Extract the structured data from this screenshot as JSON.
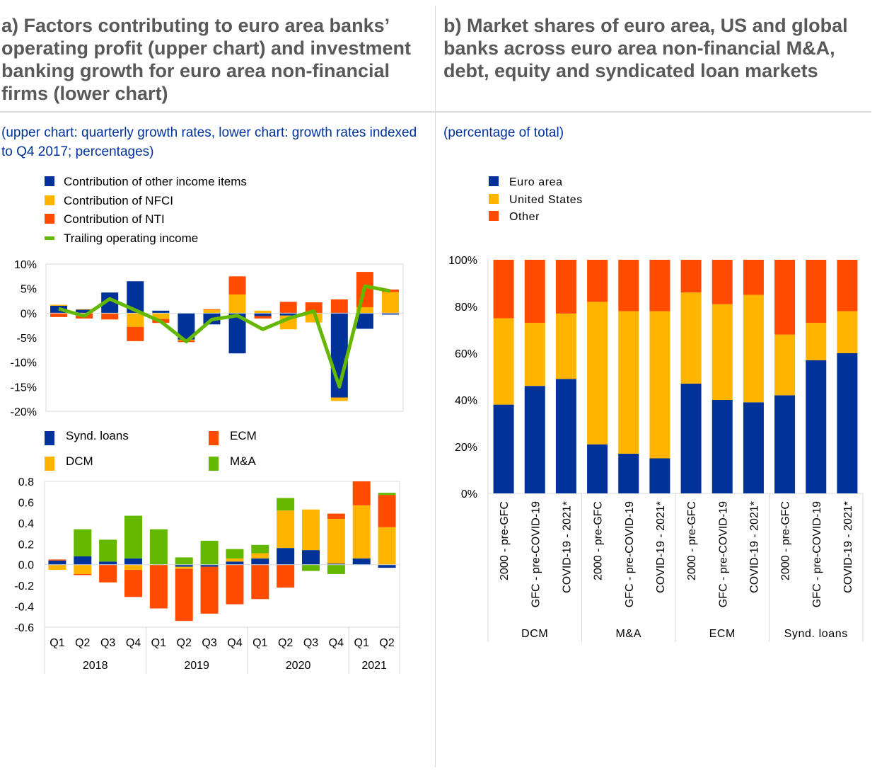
{
  "panel_a": {
    "title": "a) Factors contributing to euro area banks’ operating profit (upper chart) and investment banking growth for euro area non-financial firms (lower chart)",
    "subtitle": "(upper chart: quarterly growth rates, lower chart: growth rates indexed to Q4 2017; percentages)"
  },
  "panel_b": {
    "title": "b) Market shares of euro area, US and global banks across euro area non-financial M&A, debt, equity and syndicated loan markets",
    "subtitle": "(percentage of total)"
  },
  "colors": {
    "blue": "#003299",
    "yellow": "#FFB400",
    "orange": "#FF4B00",
    "green": "#65B800"
  },
  "chart_data": [
    {
      "type": "bar",
      "stacked": true,
      "categories": [
        "Q1",
        "Q2",
        "Q3",
        "Q4",
        "Q1",
        "Q2",
        "Q3",
        "Q4",
        "Q1",
        "Q2",
        "Q3",
        "Q4",
        "Q1",
        "Q2"
      ],
      "category_groups": [
        {
          "label": "2018",
          "span": 4
        },
        {
          "label": "2019",
          "span": 4
        },
        {
          "label": "2020",
          "span": 4
        },
        {
          "label": "2021",
          "span": 2
        }
      ],
      "ylim": [
        -20,
        10
      ],
      "yticks": [
        "10%",
        "5%",
        "0%",
        "-5%",
        "-10%",
        "-15%",
        "-20%"
      ],
      "series": [
        {
          "name": "Contribution of other income items",
          "kind": "bar",
          "values": [
            1.5,
            0.7,
            4.2,
            6.5,
            0.5,
            -5.4,
            -2.3,
            -8.2,
            -0.6,
            -0.5,
            -0.1,
            -17.2,
            -3.2,
            -0.3
          ]
        },
        {
          "name": "Contribution of NFCI",
          "kind": "bar",
          "values": [
            0.2,
            0.1,
            -0.1,
            -2.8,
            -1.2,
            -0.2,
            0.7,
            3.8,
            0.5,
            -2.8,
            -1.8,
            -0.7,
            1.2,
            4.3
          ]
        },
        {
          "name": "Contribution of NTI",
          "kind": "bar",
          "values": [
            -0.8,
            -1.1,
            -1.2,
            -2.9,
            -0.8,
            -0.3,
            0.1,
            3.7,
            -0.5,
            2.3,
            2.2,
            2.8,
            7.2,
            0.5
          ]
        },
        {
          "name": "Trailing operating income",
          "kind": "line",
          "values": [
            0.9,
            -0.6,
            2.9,
            0.6,
            -1.7,
            -5.8,
            -1.3,
            -0.5,
            -3.3,
            -1.1,
            0.4,
            -15.0,
            5.5,
            4.5
          ]
        }
      ]
    },
    {
      "type": "bar",
      "stacked": true,
      "categories": [
        "Q1",
        "Q2",
        "Q3",
        "Q4",
        "Q1",
        "Q2",
        "Q3",
        "Q4",
        "Q1",
        "Q2",
        "Q3",
        "Q4",
        "Q1",
        "Q2"
      ],
      "category_groups": [
        {
          "label": "2018",
          "span": 4
        },
        {
          "label": "2019",
          "span": 4
        },
        {
          "label": "2020",
          "span": 4
        },
        {
          "label": "2021",
          "span": 2
        }
      ],
      "ylim": [
        -0.6,
        0.8
      ],
      "yticks": [
        "0.8",
        "0.6",
        "0.4",
        "0.2",
        "0.0",
        "-0.2",
        "-0.4",
        "-0.6"
      ],
      "series": [
        {
          "name": "Synd. loans",
          "values": [
            0.04,
            0.08,
            0.03,
            0.06,
            0.0,
            -0.02,
            -0.02,
            0.03,
            0.06,
            0.16,
            0.14,
            0.01,
            0.06,
            -0.03
          ]
        },
        {
          "name": "DCM",
          "values": [
            -0.05,
            -0.09,
            0.0,
            -0.05,
            0.0,
            -0.02,
            0.0,
            0.03,
            0.05,
            0.36,
            0.39,
            0.43,
            0.51,
            0.36
          ]
        },
        {
          "name": "ECM",
          "values": [
            0.01,
            -0.01,
            -0.17,
            -0.26,
            -0.42,
            -0.5,
            -0.45,
            -0.38,
            -0.33,
            -0.22,
            0.0,
            0.05,
            0.23,
            0.31
          ]
        },
        {
          "name": "M&A",
          "values": [
            0.0,
            0.26,
            0.21,
            0.41,
            0.34,
            0.07,
            0.23,
            0.09,
            0.08,
            0.12,
            -0.06,
            -0.09,
            0.0,
            0.02
          ]
        }
      ]
    },
    {
      "type": "bar",
      "stacked": true,
      "categories": [
        "2000 - pre-GFC",
        "GFC - pre-COVID-19",
        "COVID-19 - 2021*",
        "2000 - pre-GFC",
        "GFC - pre-COVID-19",
        "COVID-19 - 2021*",
        "2000 - pre-GFC",
        "GFC - pre-COVID-19",
        "COVID-19 - 2021*",
        "2000 - pre-GFC",
        "GFC - pre-COVID-19",
        "COVID-19 - 2021*"
      ],
      "category_groups": [
        {
          "label": "DCM",
          "span": 3
        },
        {
          "label": "M&A",
          "span": 3
        },
        {
          "label": "ECM",
          "span": 3
        },
        {
          "label": "Synd. loans",
          "span": 3
        }
      ],
      "ylim": [
        0,
        100
      ],
      "yticks": [
        "100%",
        "80%",
        "60%",
        "40%",
        "20%",
        "0%"
      ],
      "legend_position": "top-left",
      "series": [
        {
          "name": "Euro area",
          "values": [
            38,
            46,
            49,
            21,
            17,
            15,
            47,
            40,
            39,
            42,
            57,
            60
          ]
        },
        {
          "name": "United States",
          "values": [
            37,
            27,
            28,
            61,
            61,
            63,
            39,
            41,
            46,
            26,
            16,
            18
          ]
        },
        {
          "name": "Other",
          "values": [
            25,
            27,
            23,
            18,
            22,
            22,
            14,
            19,
            15,
            32,
            27,
            22
          ]
        }
      ]
    }
  ]
}
